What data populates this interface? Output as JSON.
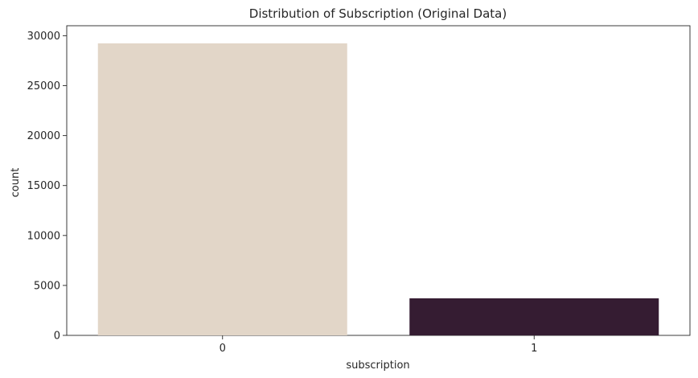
{
  "chart_data": {
    "type": "bar",
    "title": "Distribution of Subscription (Original Data)",
    "xlabel": "subscription",
    "ylabel": "count",
    "categories": [
      "0",
      "1"
    ],
    "values": [
      29238,
      3712
    ],
    "ylim": [
      0,
      31000
    ],
    "yticks": [
      0,
      5000,
      10000,
      15000,
      20000,
      25000,
      30000
    ],
    "bar_colors": [
      "#e2d6c8",
      "#351c32"
    ],
    "grid": false,
    "legend": "none"
  }
}
